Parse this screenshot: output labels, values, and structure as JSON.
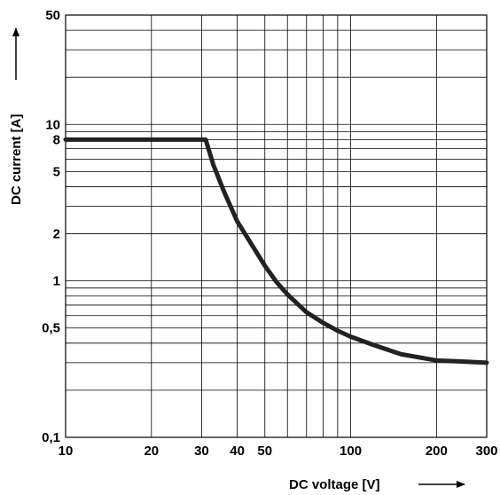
{
  "chart_data": {
    "type": "line",
    "title": "",
    "xlabel": "DC voltage [V]",
    "ylabel": "DC current [A]",
    "x_scale": "log",
    "y_scale": "log",
    "xlim": [
      10,
      300
    ],
    "ylim": [
      0.1,
      50
    ],
    "grid": true,
    "x_gridlines": [
      10,
      20,
      30,
      40,
      50,
      60,
      70,
      80,
      90,
      100,
      200,
      300
    ],
    "y_gridlines": [
      0.1,
      0.2,
      0.3,
      0.4,
      0.5,
      0.6,
      0.7,
      0.8,
      0.9,
      1,
      2,
      3,
      4,
      5,
      6,
      7,
      8,
      9,
      10,
      20,
      30,
      40,
      50
    ],
    "x_ticks": [
      {
        "value": 10,
        "label": "10"
      },
      {
        "value": 20,
        "label": "20"
      },
      {
        "value": 30,
        "label": "30"
      },
      {
        "value": 40,
        "label": "40"
      },
      {
        "value": 50,
        "label": "50"
      },
      {
        "value": 100,
        "label": "100"
      },
      {
        "value": 200,
        "label": "200"
      },
      {
        "value": 300,
        "label": "300"
      }
    ],
    "y_ticks": [
      {
        "value": 0.1,
        "label": "0,1"
      },
      {
        "value": 0.5,
        "label": "0,5"
      },
      {
        "value": 1,
        "label": "1"
      },
      {
        "value": 2,
        "label": "2"
      },
      {
        "value": 5,
        "label": "5"
      },
      {
        "value": 8,
        "label": "8"
      },
      {
        "value": 10,
        "label": "10"
      },
      {
        "value": 50,
        "label": "50"
      }
    ],
    "series": [
      {
        "color": "#222222",
        "x": [
          10,
          20,
          30,
          31,
          33,
          36,
          40,
          45,
          50,
          55,
          60,
          70,
          80,
          90,
          100,
          120,
          150,
          200,
          250,
          300
        ],
        "y": [
          8,
          8,
          8,
          8,
          5.5,
          3.7,
          2.4,
          1.7,
          1.25,
          0.98,
          0.82,
          0.63,
          0.54,
          0.48,
          0.44,
          0.39,
          0.34,
          0.31,
          0.305,
          0.3
        ]
      }
    ]
  }
}
